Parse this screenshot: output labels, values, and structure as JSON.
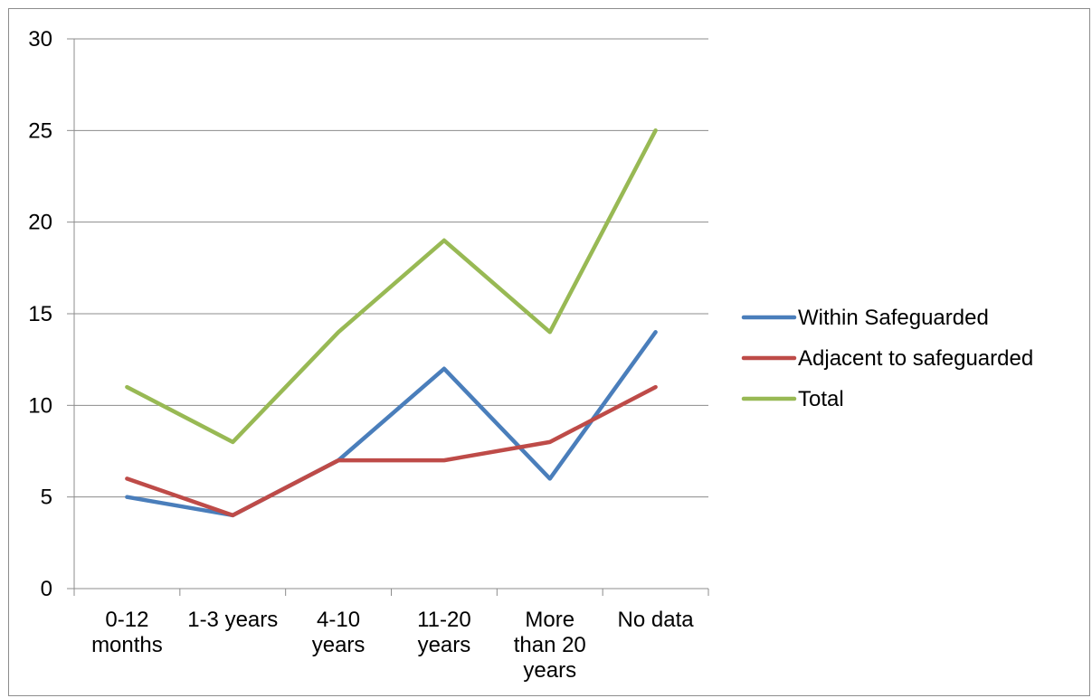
{
  "chart_data": {
    "type": "line",
    "title": "",
    "xlabel": "",
    "ylabel": "",
    "categories": [
      [
        "0-12",
        "months"
      ],
      [
        "1-3 years"
      ],
      [
        "4-10",
        "years"
      ],
      [
        "11-20",
        "years"
      ],
      [
        "More",
        "than 20",
        "years"
      ],
      [
        "No data"
      ]
    ],
    "ylim": [
      0,
      30
    ],
    "yticks": [
      0,
      5,
      10,
      15,
      20,
      25,
      30
    ],
    "grid": true,
    "legend": "right",
    "series": [
      {
        "name": "Within Safeguarded",
        "color": "#4a7ebb",
        "values": [
          5,
          4,
          7,
          12,
          6,
          14
        ]
      },
      {
        "name": "Adjacent to safeguarded",
        "color": "#be4b48",
        "values": [
          6,
          4,
          7,
          7,
          8,
          11
        ]
      },
      {
        "name": "Total",
        "color": "#98b954",
        "values": [
          11,
          8,
          14,
          19,
          14,
          25
        ]
      }
    ]
  }
}
